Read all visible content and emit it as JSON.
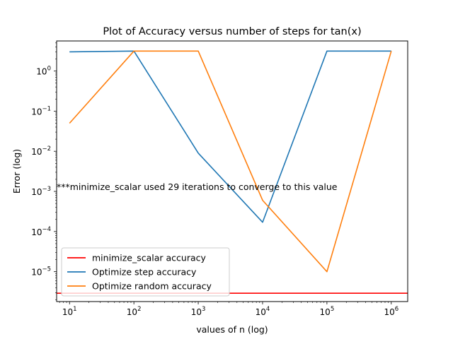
{
  "chart_data": {
    "type": "line",
    "title": "Plot of Accuracy versus number of steps for tan(x)",
    "xlabel": "values of n (log)",
    "ylabel": "Error (log)",
    "xscale": "log",
    "yscale": "log",
    "xlim": [
      6.3,
      1800000
    ],
    "ylim": [
      1.8e-06,
      5.6
    ],
    "grid": false,
    "legend_position": "lower-left",
    "x_ticks": [
      {
        "base": "10",
        "exp": "1",
        "value": 10
      },
      {
        "base": "10",
        "exp": "2",
        "value": 100
      },
      {
        "base": "10",
        "exp": "3",
        "value": 1000
      },
      {
        "base": "10",
        "exp": "4",
        "value": 10000
      },
      {
        "base": "10",
        "exp": "5",
        "value": 100000
      },
      {
        "base": "10",
        "exp": "6",
        "value": 1000000
      }
    ],
    "y_ticks": [
      {
        "base": "10",
        "exp": "−5",
        "value": 1e-05
      },
      {
        "base": "10",
        "exp": "−4",
        "value": 0.0001
      },
      {
        "base": "10",
        "exp": "−3",
        "value": 0.001
      },
      {
        "base": "10",
        "exp": "−2",
        "value": 0.01
      },
      {
        "base": "10",
        "exp": "−1",
        "value": 0.1
      },
      {
        "base": "10",
        "exp": "0",
        "value": 1
      }
    ],
    "series": [
      {
        "name": "minimize_scalar accuracy",
        "kind": "hline",
        "color": "#ff0000",
        "y": 2.9e-06
      },
      {
        "name": "Optimize step accuracy",
        "color": "#1f77b4",
        "x": [
          10,
          100,
          1000,
          10000,
          100000,
          1000000
        ],
        "y": [
          3.0,
          3.14,
          0.009,
          0.00017,
          3.14,
          3.14
        ]
      },
      {
        "name": "Optimize random accuracy",
        "color": "#ff7f0e",
        "x": [
          10,
          100,
          1000,
          10000,
          100000,
          1000000
        ],
        "y": [
          0.05,
          3.14,
          3.14,
          0.0006,
          1e-05,
          3.14
        ]
      }
    ],
    "annotations": [
      {
        "text": "***minimize_scalar used 29 iterations to converge to this value",
        "x": 6.3,
        "y": 0.001
      }
    ]
  }
}
